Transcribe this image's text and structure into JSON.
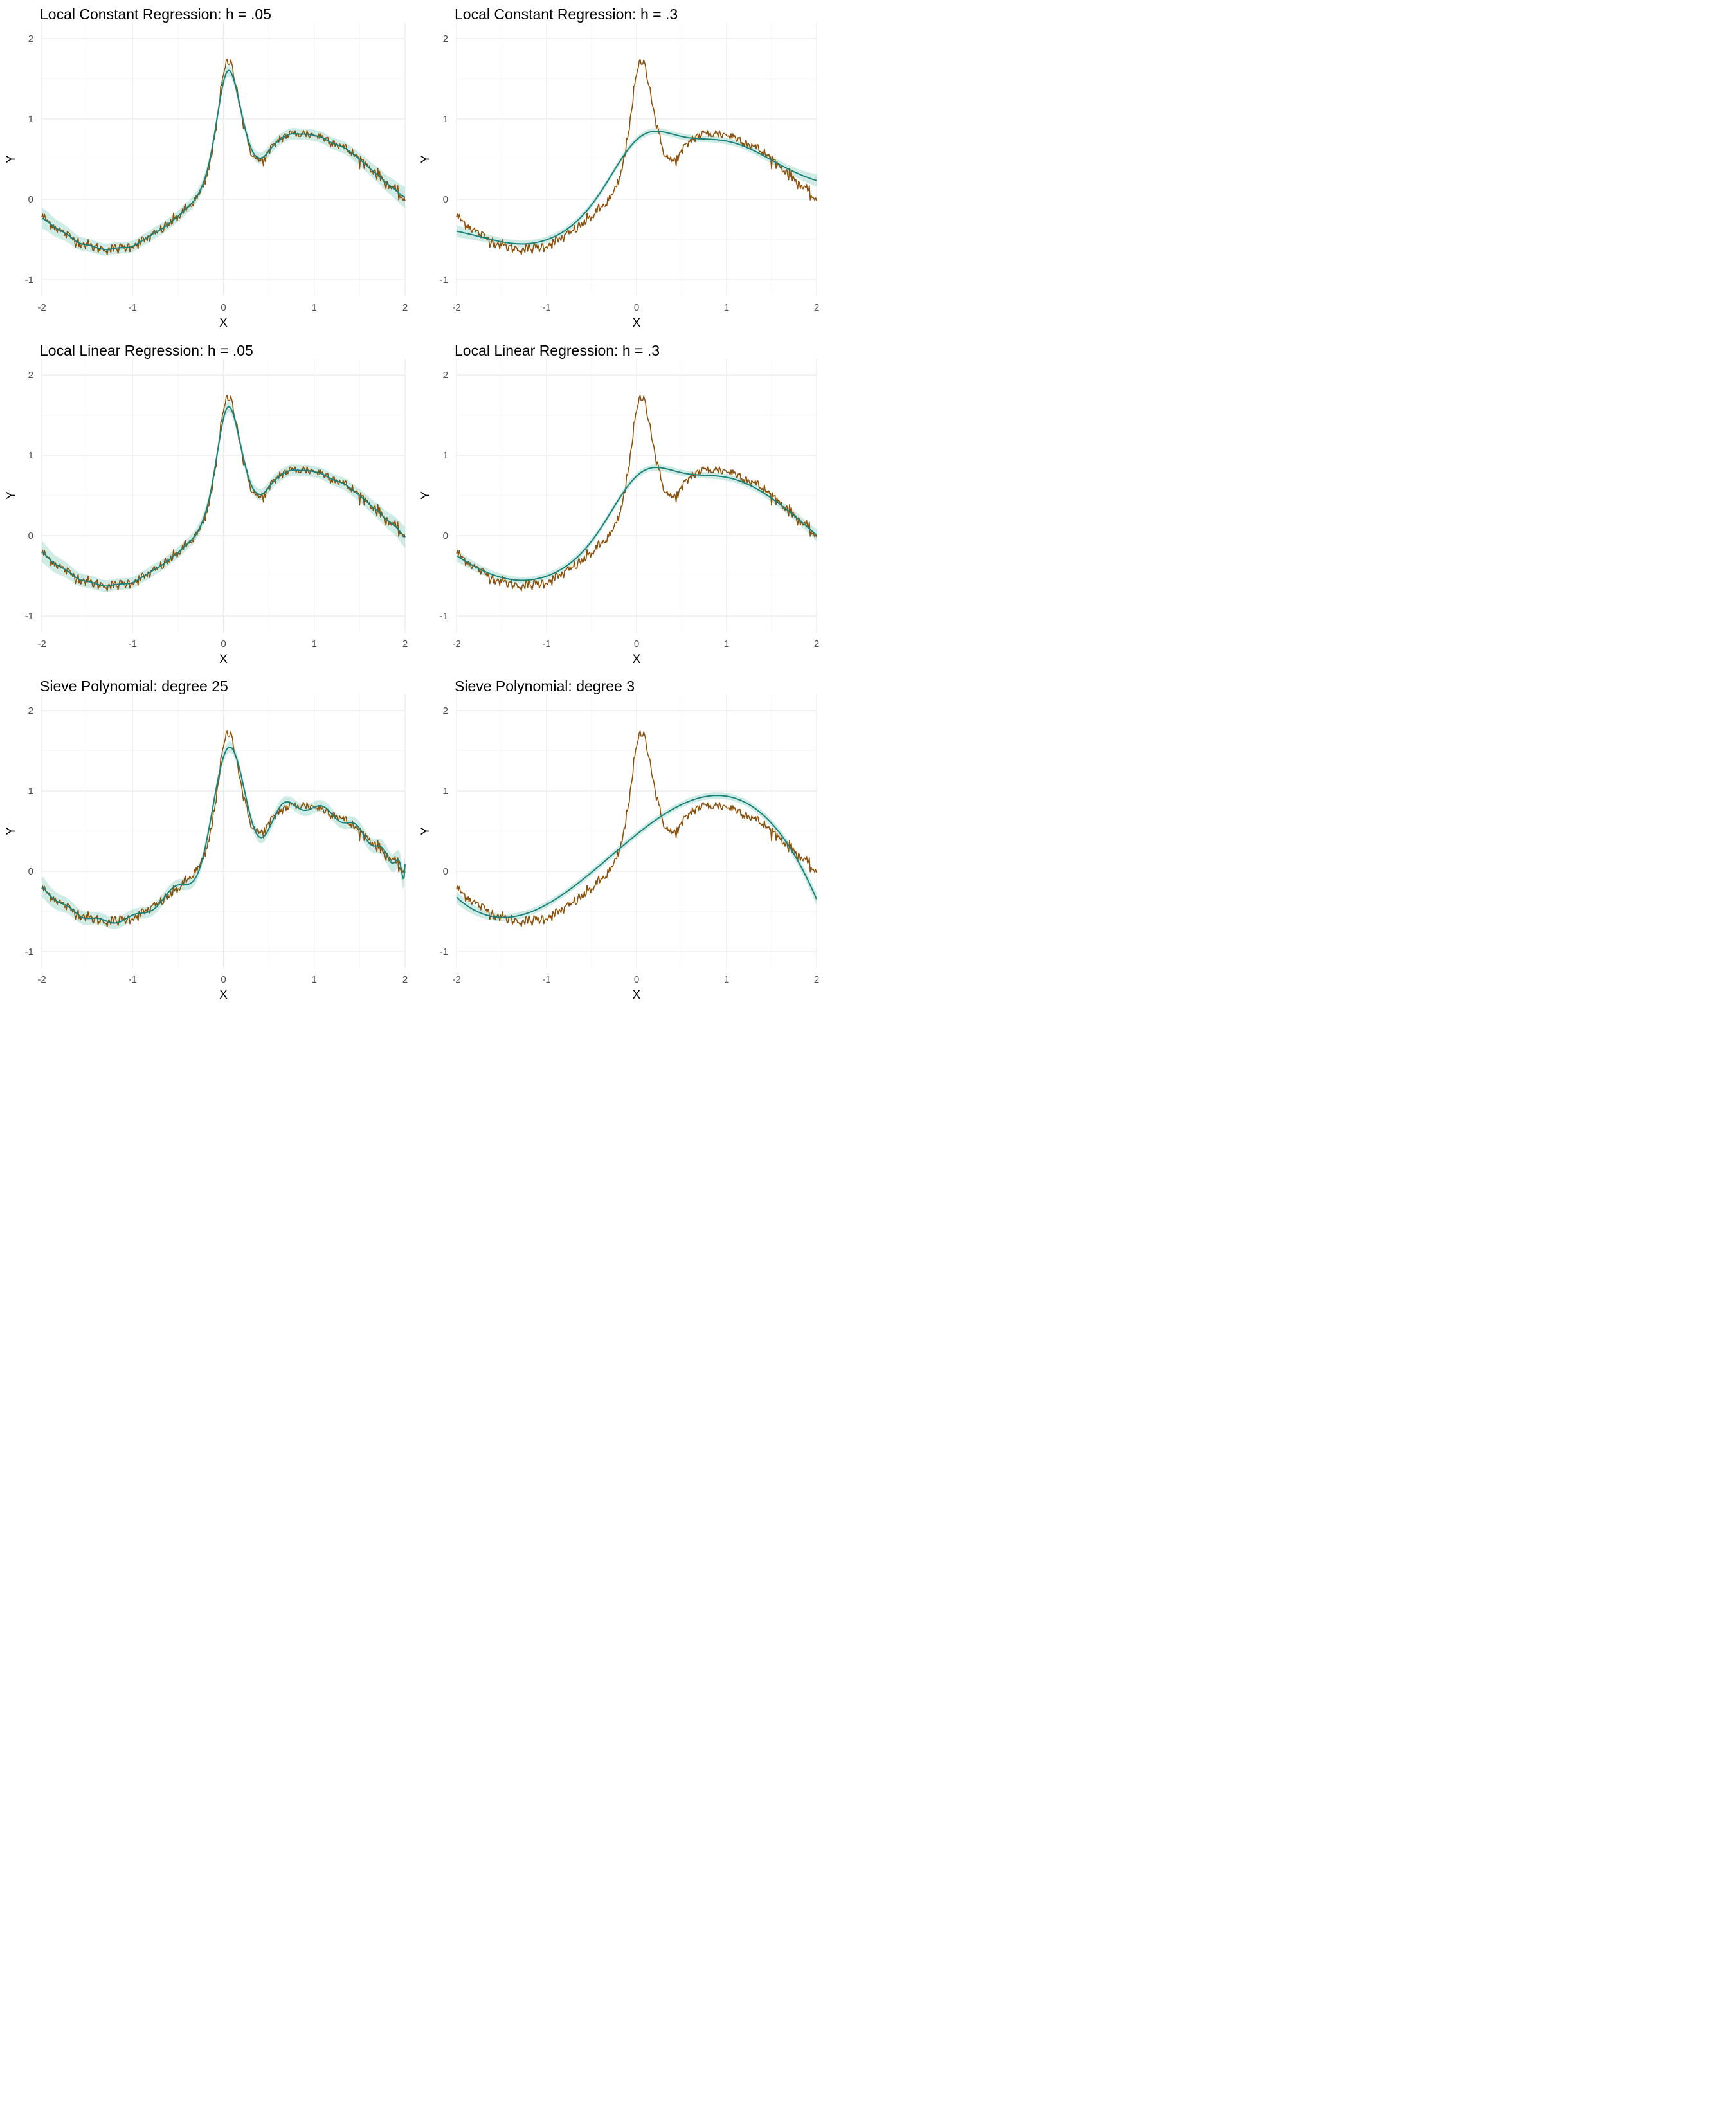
{
  "colors": {
    "truth": "#8c510a",
    "fit": "#1b8179",
    "band": "#7fcdbb"
  },
  "chart_data": [
    {
      "type": "line",
      "title": "Local Constant Regression: h = .05",
      "xlabel": "X",
      "ylabel": "Y",
      "xlim": [
        -2,
        2
      ],
      "ylim": [
        -1.2,
        2.2
      ],
      "xticks": [
        "-2",
        "-1",
        "0",
        "1",
        "2"
      ],
      "yticks": [
        "-1",
        "0",
        "1",
        "2"
      ],
      "grid": true,
      "method": "local_constant",
      "bandwidth": 0.05,
      "band_width": 0.07
    },
    {
      "type": "line",
      "title": "Local Constant Regression: h = .3",
      "xlabel": "X",
      "ylabel": "Y",
      "xlim": [
        -2,
        2
      ],
      "ylim": [
        -1.2,
        2.2
      ],
      "xticks": [
        "-2",
        "-1",
        "0",
        "1",
        "2"
      ],
      "yticks": [
        "-1",
        "0",
        "1",
        "2"
      ],
      "grid": true,
      "method": "local_constant",
      "bandwidth": 0.3,
      "band_width": 0.04
    },
    {
      "type": "line",
      "title": "Local Linear Regression: h = .05",
      "xlabel": "X",
      "ylabel": "Y",
      "xlim": [
        -2,
        2
      ],
      "ylim": [
        -1.2,
        2.2
      ],
      "xticks": [
        "-2",
        "-1",
        "0",
        "1",
        "2"
      ],
      "yticks": [
        "-1",
        "0",
        "1",
        "2"
      ],
      "grid": true,
      "method": "local_linear",
      "bandwidth": 0.05,
      "band_width": 0.07
    },
    {
      "type": "line",
      "title": "Local Linear Regression: h = .3",
      "xlabel": "X",
      "ylabel": "Y",
      "xlim": [
        -2,
        2
      ],
      "ylim": [
        -1.2,
        2.2
      ],
      "xticks": [
        "-2",
        "-1",
        "0",
        "1",
        "2"
      ],
      "yticks": [
        "-1",
        "0",
        "1",
        "2"
      ],
      "grid": true,
      "method": "local_linear",
      "bandwidth": 0.3,
      "band_width": 0.04
    },
    {
      "type": "line",
      "title": "Sieve Polynomial: degree 25",
      "xlabel": "X",
      "ylabel": "Y",
      "xlim": [
        -2,
        2
      ],
      "ylim": [
        -1.2,
        2.2
      ],
      "xticks": [
        "-2",
        "-1",
        "0",
        "1",
        "2"
      ],
      "yticks": [
        "-1",
        "0",
        "1",
        "2"
      ],
      "grid": true,
      "method": "sieve",
      "degree": 25,
      "band_width": 0.07
    },
    {
      "type": "line",
      "title": "Sieve Polynomial: degree 3",
      "xlabel": "X",
      "ylabel": "Y",
      "xlim": [
        -2,
        2
      ],
      "ylim": [
        -1.2,
        2.2
      ],
      "xticks": [
        "-2",
        "-1",
        "0",
        "1",
        "2"
      ],
      "yticks": [
        "-1",
        "0",
        "1",
        "2"
      ],
      "grid": true,
      "method": "sieve",
      "degree": 3,
      "band_width": 0.04
    }
  ]
}
